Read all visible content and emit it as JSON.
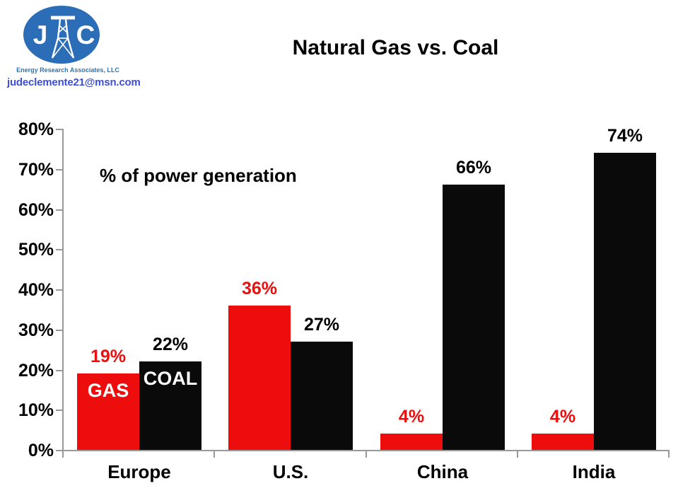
{
  "page": {
    "background": "#ffffff"
  },
  "header": {
    "logo": {
      "letters": {
        "left": "J",
        "right": "C"
      },
      "tower_icon": "transmission-tower",
      "circle_color": "#2b6db6",
      "org_name": "Energy Research Associates, LLC",
      "org_color": "#2e75b6",
      "email": "judeclemente21@msn.com",
      "email_color": "#3d4ed8"
    },
    "title": "Natural Gas vs. Coal"
  },
  "chart_data": {
    "type": "bar",
    "title": "Natural Gas vs. Coal",
    "annotation": "% of power generation",
    "categories": [
      "Europe",
      "U.S.",
      "China",
      "India"
    ],
    "series": [
      {
        "name": "GAS",
        "color": "#ee0d0d",
        "label_color": "#ee0d0d",
        "values": [
          19,
          36,
          4,
          4
        ],
        "value_labels": [
          "19%",
          "36%",
          "4%",
          "4%"
        ]
      },
      {
        "name": "COAL",
        "color": "#0a0a0a",
        "label_color": "#000000",
        "values": [
          22,
          27,
          66,
          74
        ],
        "value_labels": [
          "22%",
          "27%",
          "66%",
          "74%"
        ]
      }
    ],
    "series_name_labels_shown_in_category": "Europe",
    "ylim": [
      0,
      80
    ],
    "ytick_step": 10,
    "ytick_labels": [
      "0%",
      "10%",
      "20%",
      "30%",
      "40%",
      "50%",
      "60%",
      "70%",
      "80%"
    ],
    "axis_color": "#999999",
    "grid": false,
    "legend_position": "inside-first-bars"
  }
}
